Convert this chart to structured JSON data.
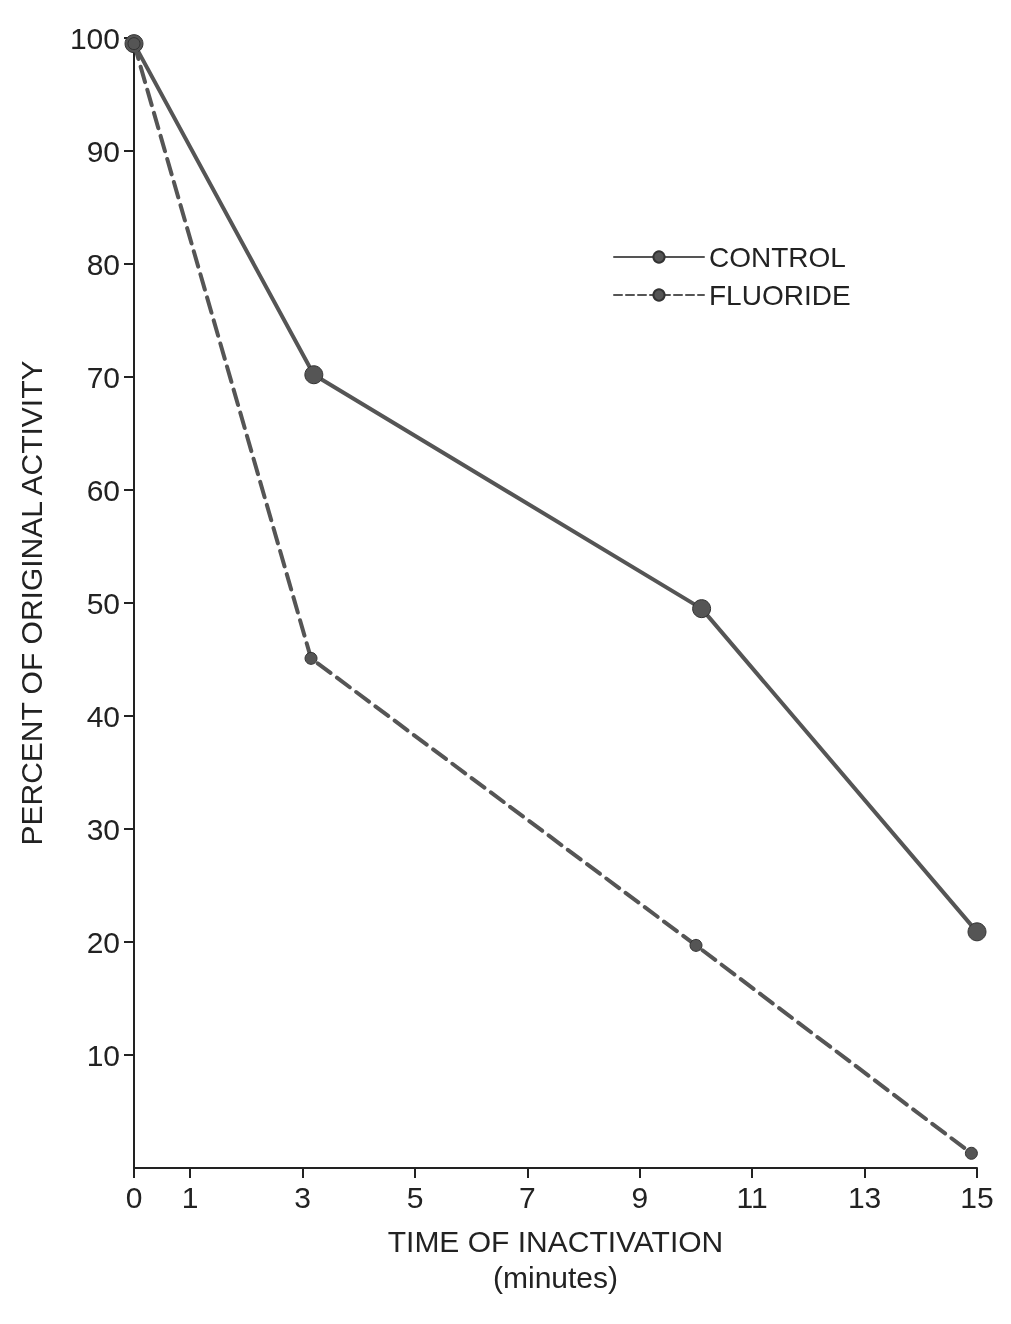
{
  "chart_data": {
    "type": "line",
    "xlabel": "TIME OF INACTIVATION\n(minutes)",
    "ylabel": "PERCENT OF ORIGINAL ACTIVITY",
    "xlim": [
      0,
      15
    ],
    "xticks": [
      0,
      1,
      3,
      5,
      7,
      9,
      11,
      13,
      15
    ],
    "ylim": [
      0,
      100
    ],
    "yticks": [
      10,
      20,
      30,
      40,
      50,
      60,
      70,
      80,
      90,
      100
    ],
    "series": [
      {
        "name": "CONTROL",
        "color": "#555555",
        "line_style": "solid",
        "x": [
          0,
          3.2,
          10.1,
          15
        ],
        "values": [
          99.5,
          70.2,
          49.5,
          20.9
        ]
      },
      {
        "name": "FLUORIDE",
        "color": "#555555",
        "line_style": "dashed",
        "x": [
          0,
          3.15,
          10,
          14.9
        ],
        "values": [
          99.5,
          45.1,
          19.7,
          1.3
        ]
      }
    ],
    "marker": "circle",
    "legend": "top right",
    "grid": false
  }
}
